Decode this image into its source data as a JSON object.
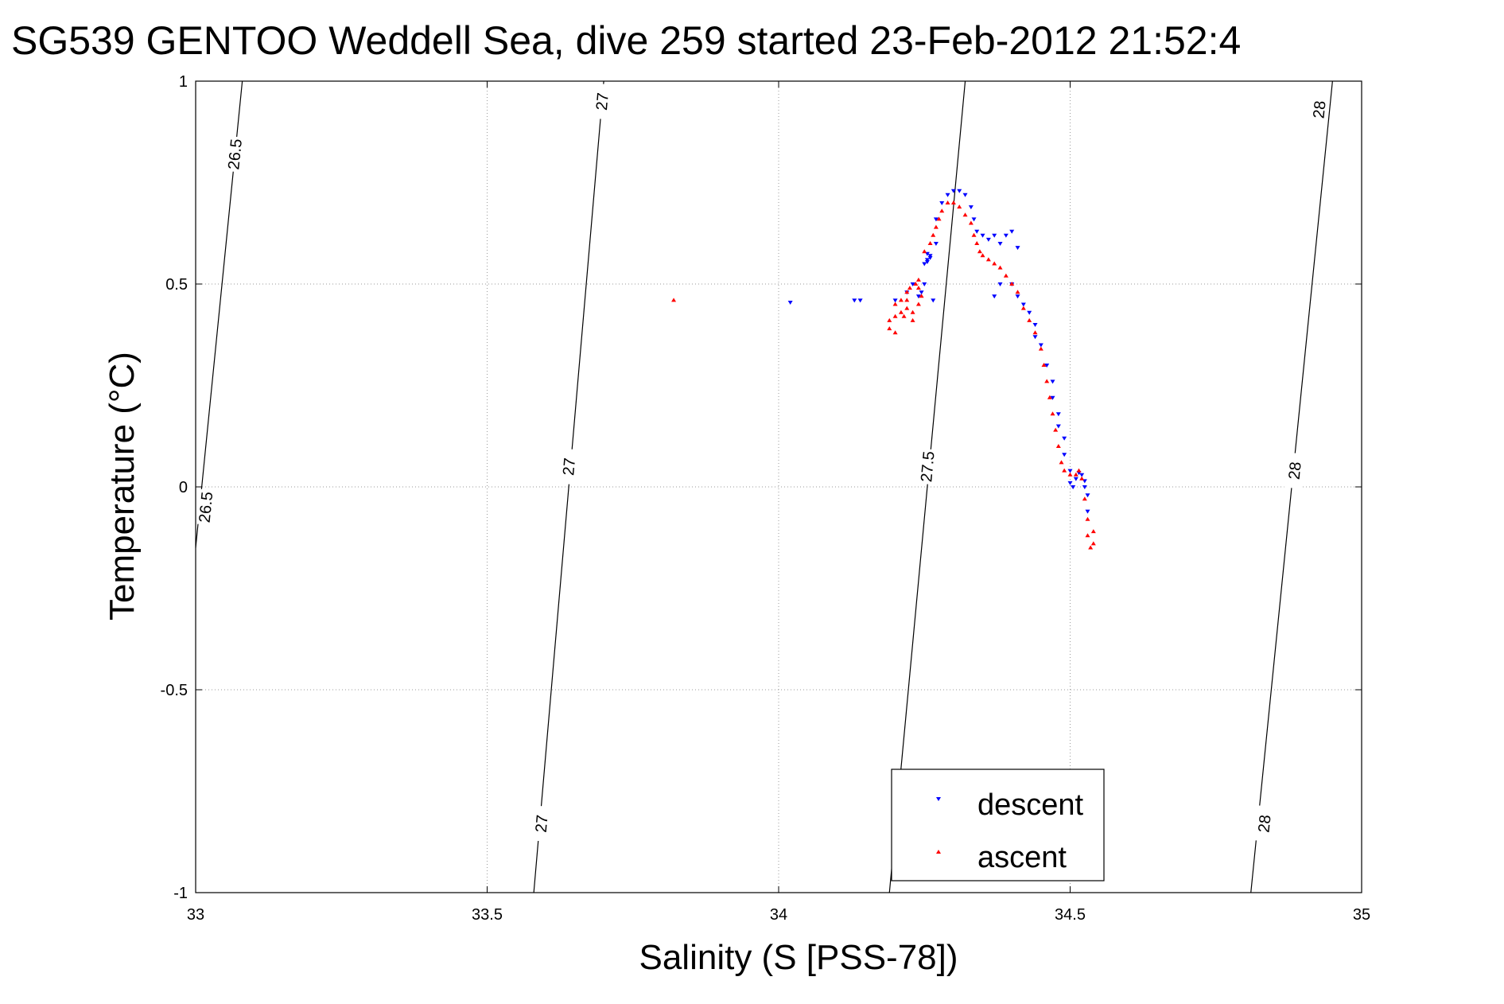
{
  "chart_data": {
    "type": "scatter",
    "title": "SG539 GENTOO Weddell Sea, dive 259 started 23-Feb-2012 21:52:4",
    "xlabel": "Salinity (S [PSS-78])",
    "ylabel": "Temperature (°C)",
    "xlim": [
      33,
      35
    ],
    "ylim": [
      -1,
      1
    ],
    "xticks": [
      33,
      33.5,
      34,
      34.5,
      35
    ],
    "xtick_labels": [
      "33",
      "33.5",
      "34",
      "34.5",
      "35"
    ],
    "yticks": [
      -1,
      -0.5,
      0,
      0.5,
      1
    ],
    "ytick_labels": [
      "-1",
      "-0.5",
      "0",
      "0.5",
      "1"
    ],
    "grid": true,
    "grid_style": "dotted",
    "legend_position": "bottom-right",
    "density_contours": [
      {
        "level": "26.5",
        "points": [
          [
            33.0,
            -0.15
          ],
          [
            33.08,
            1.0
          ]
        ],
        "labels": [
          {
            "text": "26.5",
            "s": 33.067,
            "t": 0.82
          },
          {
            "text": "26.5",
            "s": 33.017,
            "t": -0.05
          }
        ]
      },
      {
        "level": "27",
        "points": [
          [
            33.58,
            -1.0
          ],
          [
            33.7,
            1.0
          ]
        ],
        "labels": [
          {
            "text": "27",
            "s": 33.697,
            "t": 0.95
          },
          {
            "text": "27",
            "s": 33.64,
            "t": 0.05
          },
          {
            "text": "27",
            "s": 33.593,
            "t": -0.83
          }
        ]
      },
      {
        "level": "27.5",
        "points": [
          [
            34.19,
            -1.0
          ],
          [
            34.32,
            1.0
          ]
        ],
        "labels": [
          {
            "text": "27.5",
            "s": 34.255,
            "t": 0.05
          }
        ]
      },
      {
        "level": "28",
        "points": [
          [
            34.81,
            -1.0
          ],
          [
            34.95,
            1.0
          ]
        ],
        "labels": [
          {
            "text": "28",
            "s": 34.927,
            "t": 0.93
          },
          {
            "text": "28",
            "s": 34.885,
            "t": 0.04
          },
          {
            "text": "28",
            "s": 34.833,
            "t": -0.83
          }
        ]
      }
    ],
    "series": [
      {
        "name": "descent",
        "color": "#0000ff",
        "marker": "triangle-down",
        "points": [
          [
            34.02,
            0.455
          ],
          [
            34.13,
            0.46
          ],
          [
            34.14,
            0.46
          ],
          [
            34.2,
            0.46
          ],
          [
            34.22,
            0.48
          ],
          [
            34.23,
            0.5
          ],
          [
            34.24,
            0.47
          ],
          [
            34.245,
            0.48
          ],
          [
            34.25,
            0.5
          ],
          [
            34.25,
            0.55
          ],
          [
            34.255,
            0.56
          ],
          [
            34.26,
            0.57
          ],
          [
            34.255,
            0.575
          ],
          [
            34.26,
            0.565
          ],
          [
            34.255,
            0.555
          ],
          [
            34.265,
            0.46
          ],
          [
            34.27,
            0.6
          ],
          [
            34.27,
            0.66
          ],
          [
            34.28,
            0.7
          ],
          [
            34.29,
            0.72
          ],
          [
            34.3,
            0.73
          ],
          [
            34.31,
            0.73
          ],
          [
            34.32,
            0.72
          ],
          [
            34.33,
            0.69
          ],
          [
            34.335,
            0.66
          ],
          [
            34.34,
            0.63
          ],
          [
            34.35,
            0.62
          ],
          [
            34.36,
            0.61
          ],
          [
            34.37,
            0.62
          ],
          [
            34.38,
            0.6
          ],
          [
            34.39,
            0.62
          ],
          [
            34.4,
            0.63
          ],
          [
            34.41,
            0.59
          ],
          [
            34.37,
            0.47
          ],
          [
            34.38,
            0.5
          ],
          [
            34.4,
            0.5
          ],
          [
            34.41,
            0.47
          ],
          [
            34.42,
            0.45
          ],
          [
            34.43,
            0.43
          ],
          [
            34.44,
            0.4
          ],
          [
            34.44,
            0.37
          ],
          [
            34.45,
            0.35
          ],
          [
            34.46,
            0.3
          ],
          [
            34.47,
            0.26
          ],
          [
            34.47,
            0.22
          ],
          [
            34.48,
            0.18
          ],
          [
            34.48,
            0.15
          ],
          [
            34.49,
            0.12
          ],
          [
            34.49,
            0.08
          ],
          [
            34.5,
            0.04
          ],
          [
            34.5,
            0.01
          ],
          [
            34.505,
            0.0
          ],
          [
            34.51,
            0.02
          ],
          [
            34.515,
            0.035
          ],
          [
            34.52,
            0.03
          ],
          [
            34.525,
            0.015
          ],
          [
            34.525,
            0.0
          ],
          [
            34.53,
            -0.02
          ],
          [
            34.53,
            -0.06
          ]
        ]
      },
      {
        "name": "ascent",
        "color": "#ff0000",
        "marker": "triangle-up",
        "points": [
          [
            33.82,
            0.46
          ],
          [
            34.19,
            0.39
          ],
          [
            34.19,
            0.41
          ],
          [
            34.2,
            0.38
          ],
          [
            34.2,
            0.42
          ],
          [
            34.21,
            0.43
          ],
          [
            34.21,
            0.46
          ],
          [
            34.2,
            0.45
          ],
          [
            34.215,
            0.42
          ],
          [
            34.22,
            0.44
          ],
          [
            34.23,
            0.41
          ],
          [
            34.22,
            0.48
          ],
          [
            34.225,
            0.49
          ],
          [
            34.235,
            0.5
          ],
          [
            34.24,
            0.51
          ],
          [
            34.24,
            0.49
          ],
          [
            34.245,
            0.47
          ],
          [
            34.24,
            0.45
          ],
          [
            34.23,
            0.43
          ],
          [
            34.22,
            0.46
          ],
          [
            34.25,
            0.58
          ],
          [
            34.26,
            0.6
          ],
          [
            34.265,
            0.62
          ],
          [
            34.27,
            0.64
          ],
          [
            34.275,
            0.66
          ],
          [
            34.28,
            0.68
          ],
          [
            34.29,
            0.7
          ],
          [
            34.3,
            0.7
          ],
          [
            34.31,
            0.69
          ],
          [
            34.32,
            0.67
          ],
          [
            34.33,
            0.65
          ],
          [
            34.335,
            0.62
          ],
          [
            34.34,
            0.6
          ],
          [
            34.345,
            0.58
          ],
          [
            34.35,
            0.57
          ],
          [
            34.36,
            0.56
          ],
          [
            34.37,
            0.55
          ],
          [
            34.38,
            0.54
          ],
          [
            34.39,
            0.52
          ],
          [
            34.4,
            0.5
          ],
          [
            34.41,
            0.48
          ],
          [
            34.42,
            0.44
          ],
          [
            34.43,
            0.41
          ],
          [
            34.44,
            0.38
          ],
          [
            34.45,
            0.34
          ],
          [
            34.455,
            0.3
          ],
          [
            34.46,
            0.26
          ],
          [
            34.465,
            0.22
          ],
          [
            34.47,
            0.18
          ],
          [
            34.475,
            0.14
          ],
          [
            34.48,
            0.1
          ],
          [
            34.485,
            0.06
          ],
          [
            34.49,
            0.04
          ],
          [
            34.5,
            0.03
          ],
          [
            34.51,
            0.03
          ],
          [
            34.515,
            0.04
          ],
          [
            34.52,
            0.02
          ],
          [
            34.525,
            -0.03
          ],
          [
            34.53,
            -0.08
          ],
          [
            34.53,
            -0.12
          ],
          [
            34.535,
            -0.15
          ],
          [
            34.54,
            -0.14
          ],
          [
            34.54,
            -0.11
          ]
        ]
      }
    ]
  }
}
